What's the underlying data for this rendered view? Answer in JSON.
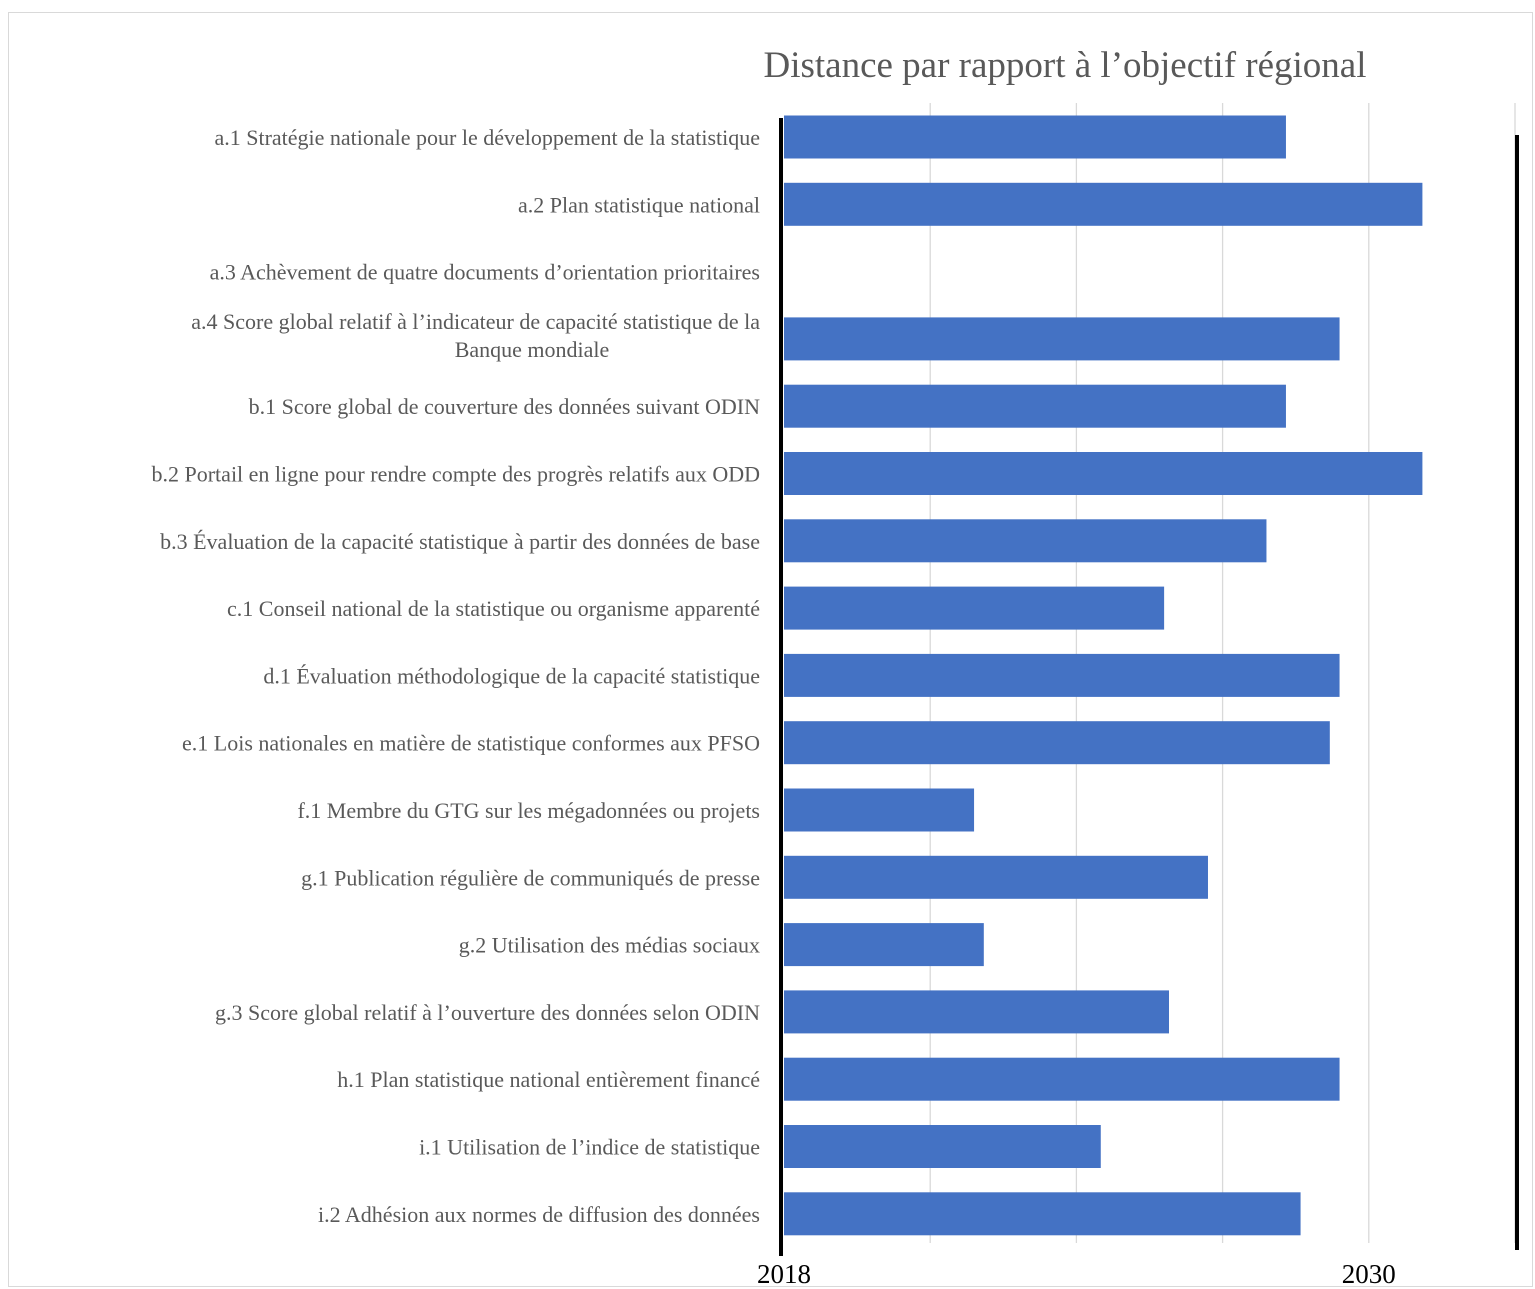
{
  "chart_data": {
    "type": "bar",
    "orientation": "horizontal",
    "title": "Distance par rapport à l’objectif régional",
    "xlabel": "",
    "ylabel": "",
    "xlim": [
      2018,
      2033
    ],
    "x_tick_labels": [
      "2018",
      "2030"
    ],
    "x_tick_values": [
      2018,
      2030
    ],
    "gridlines_x": [
      2018,
      2021,
      2024,
      2027,
      2030,
      2033
    ],
    "grid": true,
    "bar_color": "#4472C4",
    "categories": [
      [
        "a.1 Stratégie nationale pour le développement de la statistique"
      ],
      [
        "a.2 Plan statistique national"
      ],
      [
        "a.3 Achèvement de quatre documents d’orientation prioritaires"
      ],
      [
        "a.4 Score global relatif à l’indicateur de capacité statistique de la",
        "Banque mondiale"
      ],
      [
        "b.1 Score global de couverture des données suivant ODIN"
      ],
      [
        "b.2 Portail en ligne pour rendre compte des progrès relatifs aux ODD"
      ],
      [
        "b.3 Évaluation de la capacité statistique à partir des données de base"
      ],
      [
        "c.1 Conseil national de la statistique ou organisme apparenté"
      ],
      [
        "d.1 Évaluation méthodologique de la capacité statistique"
      ],
      [
        "e.1 Lois nationales en matière de statistique conformes aux PFSO"
      ],
      [
        "f.1 Membre du GTG sur les mégadonnées ou projets"
      ],
      [
        "g.1 Publication régulière de communiqués de presse"
      ],
      [
        "g.2 Utilisation des médias sociaux"
      ],
      [
        "g.3 Score global relatif à l’ouverture des données selon ODIN"
      ],
      [
        "h.1 Plan statistique national entièrement financé"
      ],
      [
        "i.1 Utilisation de l’indice de statistique"
      ],
      [
        "i.2  Adhésion aux normes de diffusion des données"
      ]
    ],
    "values": [
      2028.3,
      2031.1,
      null,
      2029.4,
      2028.3,
      2031.1,
      2027.9,
      2025.8,
      2029.4,
      2029.2,
      2021.9,
      2026.7,
      2022.1,
      2025.9,
      2029.4,
      2024.5,
      2028.6
    ]
  }
}
